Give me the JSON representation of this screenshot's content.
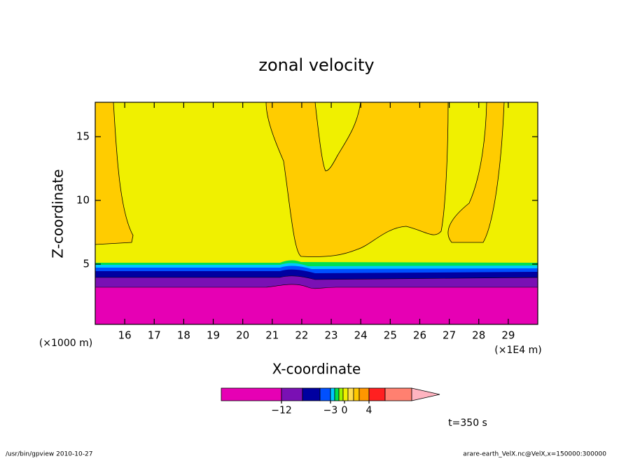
{
  "chart_data": {
    "type": "contour",
    "title": "zonal velocity",
    "x_label": "X-coordinate",
    "y_label": "Z-coordinate",
    "x_unit_left": "(×1000 m)",
    "x_unit_right": "(×1E4 m)",
    "xlim": [
      15,
      30
    ],
    "xticks": [
      16,
      17,
      18,
      19,
      20,
      21,
      22,
      23,
      24,
      25,
      26,
      27,
      28,
      29
    ],
    "ylim": [
      0.27,
      17.7
    ],
    "yticks": [
      5,
      10,
      15
    ],
    "colorbar": {
      "colors": [
        "#e600b4",
        "#7a10b4",
        "#0000a0",
        "#0050ff",
        "#00c8ff",
        "#00e050",
        "#a0f000",
        "#f0f000",
        "#ffdc50",
        "#ffc800",
        "#ff9600",
        "#ff2020",
        "#ff8070",
        "#ffb4c0"
      ],
      "ticks": [
        {
          "value": -12,
          "label": "−12"
        },
        {
          "value": -3,
          "label": "−3"
        },
        0,
        4
      ]
    },
    "time_label": "t=350 s",
    "footer_left": "/usr/bin/gpview   2010-10-27",
    "footer_right": "arare-earth_VelX.nc@VelX,x=150000:300000"
  }
}
